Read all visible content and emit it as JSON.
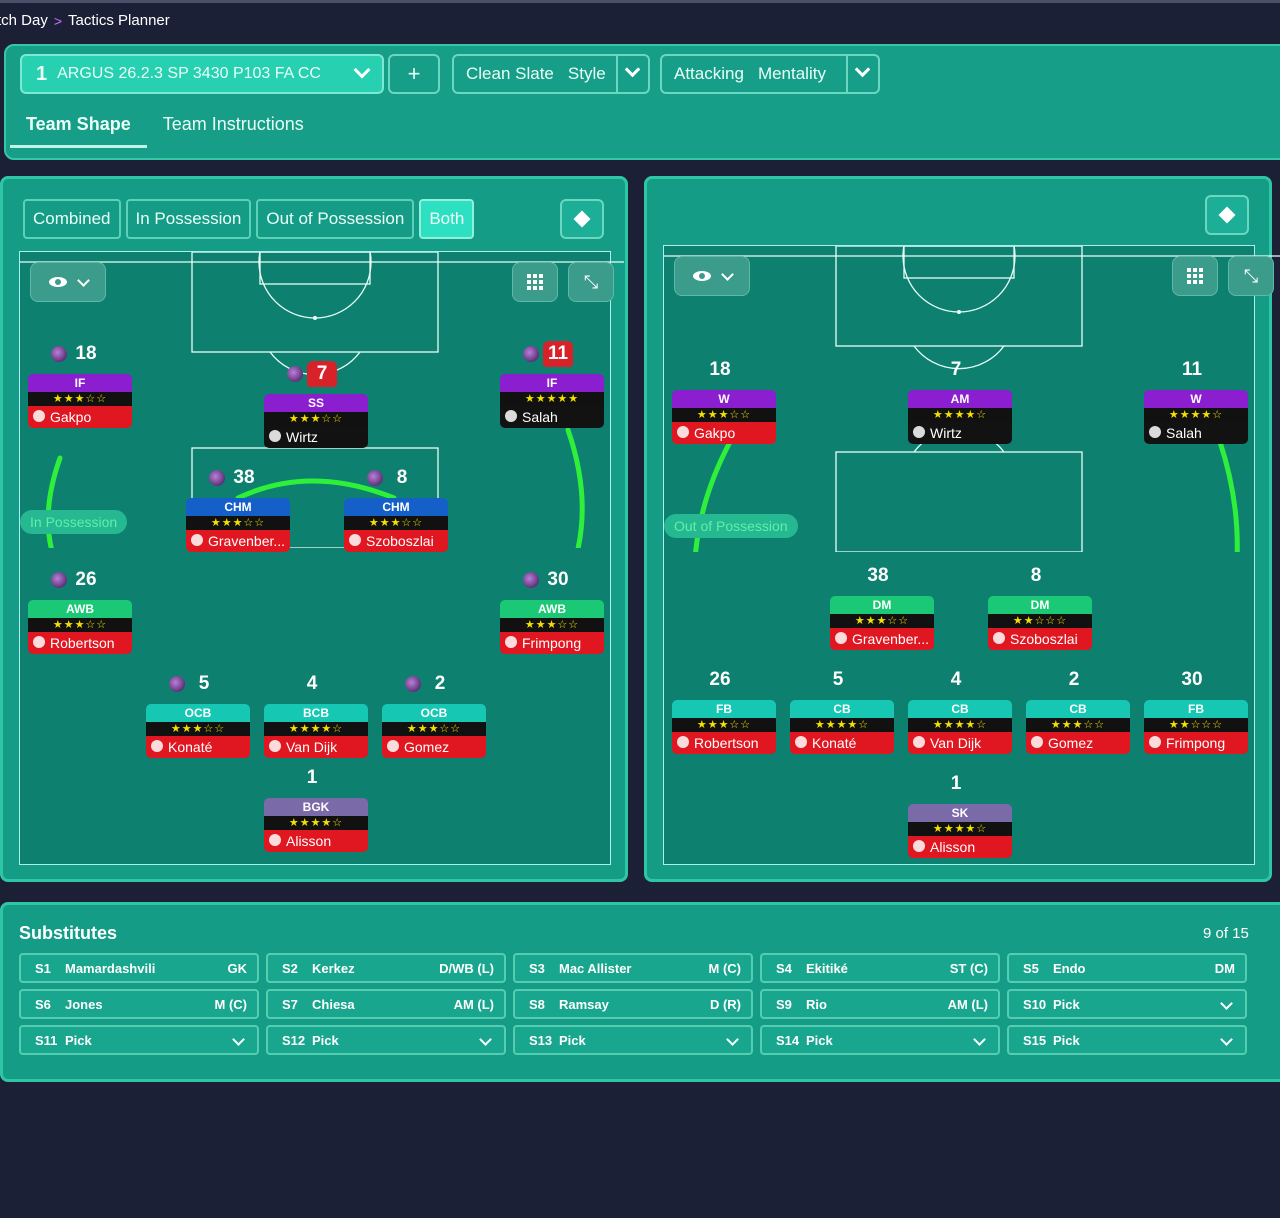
{
  "breadcrumb": {
    "parent": "tch Day",
    "separator": ">",
    "current": "Tactics Planner"
  },
  "toolbar": {
    "tactic_number": "1",
    "tactic_name": "ARGUS 26.2.3 SP 3430 P103 FA CC",
    "add_label": "+",
    "style_value": "Clean Slate",
    "style_label": "Style",
    "mentality_value": "Attacking",
    "mentality_label": "Mentality"
  },
  "tabs": [
    {
      "label": "Team Shape",
      "active": true
    },
    {
      "label": "Team Instructions",
      "active": false
    }
  ],
  "view_tabs": [
    {
      "label": "Combined"
    },
    {
      "label": "In Possession"
    },
    {
      "label": "Out of Possession"
    },
    {
      "label": "Both",
      "active": true
    }
  ],
  "left_pitch": {
    "label": "In Possession",
    "players": [
      {
        "num": "18",
        "role": "IF",
        "rating": "★★★☆☆",
        "name": "Gakpo",
        "color": "purple",
        "kit": "#0e7a66",
        "ball": true
      },
      {
        "num": "7",
        "role": "SS",
        "rating": "★★★☆☆",
        "name": "Wirtz",
        "color": "purple",
        "kit": "#d8222a",
        "ball": true,
        "dark": true
      },
      {
        "num": "11",
        "role": "IF",
        "rating": "★★★★★",
        "name": "Salah",
        "color": "purple",
        "kit": "#d8222a",
        "ball": true,
        "dark": true
      },
      {
        "num": "38",
        "role": "CHM",
        "rating": "★★★☆☆",
        "name": "Gravenber...",
        "color": "blue",
        "ball": true
      },
      {
        "num": "8",
        "role": "CHM",
        "rating": "★★★☆☆",
        "name": "Szoboszlai",
        "color": "blue",
        "ball": true
      },
      {
        "num": "26",
        "role": "AWB",
        "rating": "★★★☆☆",
        "name": "Robertson",
        "color": "green",
        "ball": true
      },
      {
        "num": "30",
        "role": "AWB",
        "rating": "★★★☆☆",
        "name": "Frimpong",
        "color": "green",
        "ball": true
      },
      {
        "num": "5",
        "role": "OCB",
        "rating": "★★★☆☆",
        "name": "Konaté",
        "color": "cyan",
        "ball": true
      },
      {
        "num": "4",
        "role": "BCB",
        "rating": "★★★★☆",
        "name": "Van Dijk",
        "color": "cyan"
      },
      {
        "num": "2",
        "role": "OCB",
        "rating": "★★★☆☆",
        "name": "Gomez",
        "color": "cyan",
        "ball": true
      },
      {
        "num": "1",
        "role": "BGK",
        "rating": "★★★★☆",
        "name": "Alisson",
        "color": "gk"
      }
    ]
  },
  "right_pitch": {
    "label": "Out of Possession",
    "players": [
      {
        "num": "18",
        "role": "W",
        "rating": "★★★☆☆",
        "name": "Gakpo",
        "color": "purple"
      },
      {
        "num": "7",
        "role": "AM",
        "rating": "★★★★☆",
        "name": "Wirtz",
        "color": "purple",
        "dark": true
      },
      {
        "num": "11",
        "role": "W",
        "rating": "★★★★☆",
        "name": "Salah",
        "color": "purple",
        "dark": true
      },
      {
        "num": "38",
        "role": "DM",
        "rating": "★★★☆☆",
        "name": "Gravenber...",
        "color": "green"
      },
      {
        "num": "8",
        "role": "DM",
        "rating": "★★☆☆☆",
        "name": "Szoboszlai",
        "color": "green"
      },
      {
        "num": "26",
        "role": "FB",
        "rating": "★★★☆☆",
        "name": "Robertson",
        "color": "cyan"
      },
      {
        "num": "5",
        "role": "CB",
        "rating": "★★★★☆",
        "name": "Konaté",
        "color": "cyan"
      },
      {
        "num": "4",
        "role": "CB",
        "rating": "★★★★☆",
        "name": "Van Dijk",
        "color": "cyan"
      },
      {
        "num": "2",
        "role": "CB",
        "rating": "★★★☆☆",
        "name": "Gomez",
        "color": "cyan"
      },
      {
        "num": "30",
        "role": "FB",
        "rating": "★★☆☆☆",
        "name": "Frimpong",
        "color": "cyan"
      },
      {
        "num": "1",
        "role": "SK",
        "rating": "★★★★☆",
        "name": "Alisson",
        "color": "gk"
      }
    ]
  },
  "substitutes": {
    "title": "Substitutes",
    "count": "9 of 15",
    "slots": [
      {
        "id": "S1",
        "name": "Mamardashvili",
        "pos": "GK"
      },
      {
        "id": "S2",
        "name": "Kerkez",
        "pos": "D/WB (L)"
      },
      {
        "id": "S3",
        "name": "Mac Allister",
        "pos": "M (C)"
      },
      {
        "id": "S4",
        "name": "Ekitiké",
        "pos": "ST (C)"
      },
      {
        "id": "S5",
        "name": "Endo",
        "pos": "DM"
      },
      {
        "id": "S6",
        "name": "Jones",
        "pos": "M (C)"
      },
      {
        "id": "S7",
        "name": "Chiesa",
        "pos": "AM (L)"
      },
      {
        "id": "S8",
        "name": "Ramsay",
        "pos": "D (R)"
      },
      {
        "id": "S9",
        "name": "Rio",
        "pos": "AM (L)"
      },
      {
        "id": "S10",
        "name": "Pick",
        "pos": "",
        "dropdown": true
      },
      {
        "id": "S11",
        "name": "Pick",
        "pos": "",
        "dropdown": true
      },
      {
        "id": "S12",
        "name": "Pick",
        "pos": "",
        "dropdown": true
      },
      {
        "id": "S13",
        "name": "Pick",
        "pos": "",
        "dropdown": true
      },
      {
        "id": "S14",
        "name": "Pick",
        "pos": "",
        "dropdown": true
      },
      {
        "id": "S15",
        "name": "Pick",
        "pos": "",
        "dropdown": true
      }
    ]
  },
  "colors": {
    "panel": "#159c86",
    "border": "#2fc6a6",
    "pitch": "#0d8070",
    "link_green": "#2ef03a",
    "link_yellow": "#f2f21a",
    "background": "#1c2036"
  },
  "icons": {
    "crumb_separator": "chevron-right-icon",
    "view": "eye-icon",
    "grid": "grid-icon",
    "expand": "expand-icon",
    "diamond": "diamond-icon",
    "ball": "ball-icon"
  }
}
